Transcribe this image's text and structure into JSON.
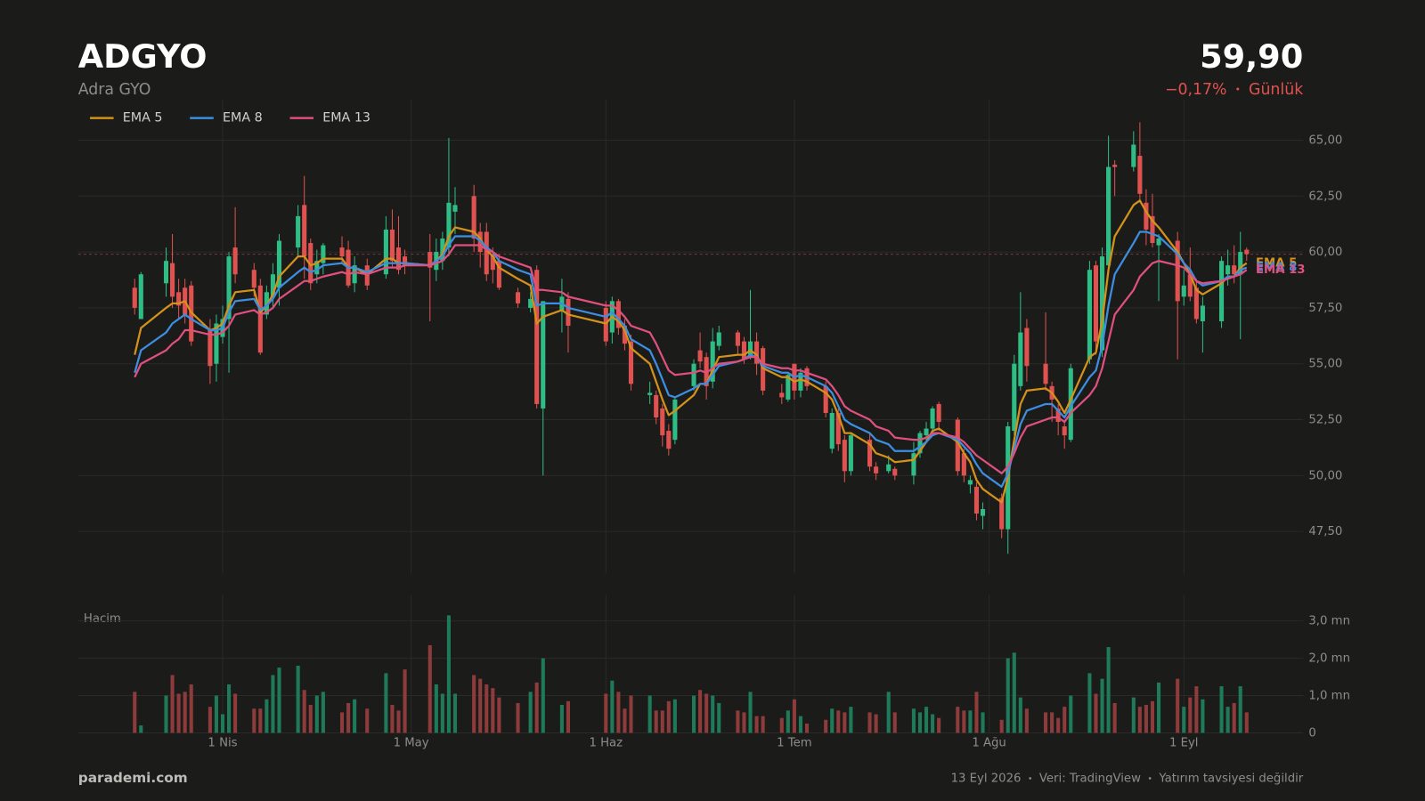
{
  "header": {
    "symbol": "ADGYO",
    "name": "Adra GYO",
    "price": "59,90",
    "change": "−0,17%",
    "period": "Günlük"
  },
  "footer": {
    "brand": "parademi.com",
    "date": "13 Eyl 2026",
    "source": "Veri: TradingView",
    "disclaimer": "Yatırım tavsiyesi değildir"
  },
  "chart_data": {
    "type": "candlestick",
    "up_color": "#2ebd85",
    "down_color": "#e0524f",
    "grid": true,
    "legend": "top-left",
    "x": [
      77,
      78,
      82,
      83,
      84,
      85,
      86,
      89,
      90,
      91,
      92,
      93,
      96,
      97,
      98,
      99,
      100,
      103,
      104,
      105,
      106,
      107,
      110,
      111,
      112,
      114,
      117,
      118,
      119,
      120,
      124,
      125,
      126,
      127,
      128,
      131,
      132,
      133,
      134,
      135,
      138,
      140,
      141,
      142,
      145,
      146,
      152,
      153,
      154,
      155,
      156,
      159,
      160,
      161,
      162,
      163,
      166,
      167,
      168,
      169,
      170,
      173,
      174,
      175,
      176,
      177,
      180,
      181,
      182,
      183,
      184,
      187,
      188,
      189,
      190,
      191,
      194,
      195,
      197,
      198,
      201,
      202,
      203,
      204,
      205,
      208,
      209,
      210,
      211,
      212,
      215,
      216,
      217,
      218,
      219,
      222,
      223,
      224,
      225,
      226,
      229,
      230,
      231,
      232,
      233,
      236,
      237,
      238,
      239,
      240,
      243,
      244,
      245,
      246,
      247,
      250,
      251,
      252,
      253,
      254
    ],
    "open": [
      58.4,
      57.0,
      58.6,
      59.5,
      58.2,
      58.4,
      58.5,
      56.5,
      55.0,
      56.2,
      57.0,
      60.2,
      59.2,
      58.5,
      57.2,
      58.0,
      58.4,
      60.2,
      62.1,
      60.4,
      59.0,
      59.5,
      60.2,
      60.1,
      58.6,
      59.4,
      59.0,
      61.0,
      60.2,
      59.8,
      60.0,
      59.2,
      59.6,
      60.2,
      61.8,
      62.5,
      60.9,
      60.9,
      59.9,
      59.6,
      58.2,
      57.5,
      59.2,
      53.0,
      57.4,
      57.9,
      57.5,
      56.4,
      57.8,
      56.7,
      56.0,
      53.6,
      53.6,
      53.0,
      52.0,
      51.6,
      54.0,
      55.6,
      55.3,
      54.2,
      55.8,
      56.4,
      56.0,
      55.4,
      56.0,
      55.7,
      53.7,
      53.4,
      55.0,
      53.8,
      54.8,
      54.0,
      51.2,
      52.8,
      51.6,
      50.2,
      51.6,
      50.4,
      50.2,
      50.3,
      50.0,
      51.0,
      51.8,
      52.1,
      53.2,
      52.5,
      51.0,
      49.6,
      49.5,
      48.2,
      49.0,
      47.6,
      52.0,
      54.0,
      56.6,
      55.0,
      54.0,
      53.0,
      52.2,
      51.6,
      55.2,
      59.4,
      55.6,
      59.4,
      63.9,
      63.8,
      64.3,
      62.2,
      61.6,
      60.3,
      60.5,
      58.0,
      59.0,
      58.4,
      56.9,
      56.9,
      59.0,
      59.4,
      59.0,
      60.1
    ],
    "high": [
      58.8,
      59.1,
      60.2,
      60.8,
      58.8,
      58.8,
      58.7,
      57.0,
      57.2,
      57.6,
      60.0,
      62.0,
      59.5,
      58.8,
      58.5,
      59.5,
      60.8,
      62.1,
      63.4,
      60.6,
      60.1,
      60.4,
      60.7,
      60.5,
      59.8,
      59.7,
      61.6,
      61.9,
      61.6,
      60.1,
      60.8,
      60.6,
      60.9,
      65.1,
      62.9,
      63.0,
      61.3,
      61.3,
      60.2,
      59.9,
      58.4,
      58.2,
      59.4,
      57.8,
      58.8,
      58.2,
      57.8,
      58.0,
      57.9,
      57.0,
      56.3,
      54.2,
      53.8,
      53.2,
      52.3,
      53.5,
      55.2,
      56.4,
      55.5,
      56.6,
      56.7,
      56.5,
      56.2,
      58.3,
      56.4,
      55.8,
      54.1,
      54.6,
      55.0,
      54.8,
      54.9,
      54.2,
      53.0,
      53.0,
      51.8,
      51.9,
      51.9,
      50.6,
      50.9,
      50.4,
      51.5,
      52.0,
      52.4,
      53.1,
      53.3,
      52.6,
      51.2,
      50.0,
      49.7,
      48.8,
      49.2,
      52.4,
      55.4,
      58.2,
      57.0,
      57.3,
      54.2,
      53.2,
      52.4,
      55.0,
      59.6,
      59.6,
      60.2,
      65.2,
      64.1,
      65.4,
      65.8,
      62.8,
      62.6,
      60.8,
      60.9,
      59.2,
      60.2,
      58.8,
      58.0,
      59.8,
      60.1,
      60.3,
      60.9,
      60.2
    ],
    "low": [
      57.2,
      57.0,
      58.0,
      57.5,
      57.0,
      56.8,
      55.8,
      54.1,
      54.2,
      55.9,
      54.6,
      58.6,
      58.0,
      55.4,
      57.0,
      57.5,
      57.6,
      59.8,
      58.8,
      58.3,
      58.6,
      59.0,
      59.5,
      58.4,
      58.2,
      58.3,
      58.8,
      59.3,
      59.0,
      59.0,
      56.9,
      58.7,
      59.2,
      59.8,
      60.8,
      60.0,
      59.3,
      58.7,
      58.6,
      58.3,
      57.5,
      57.3,
      53.0,
      50.0,
      56.4,
      55.5,
      55.8,
      55.9,
      56.3,
      55.6,
      53.8,
      53.2,
      52.3,
      51.3,
      50.9,
      51.4,
      53.8,
      54.8,
      53.4,
      53.9,
      55.6,
      55.4,
      55.0,
      55.2,
      54.5,
      53.6,
      53.2,
      53.3,
      53.4,
      53.5,
      53.8,
      52.6,
      51.0,
      51.1,
      49.7,
      50.0,
      50.2,
      49.8,
      50.1,
      49.8,
      49.6,
      50.8,
      51.5,
      51.8,
      52.0,
      50.0,
      49.7,
      49.2,
      48.0,
      47.6,
      47.2,
      46.5,
      51.8,
      53.8,
      54.2,
      53.8,
      52.4,
      51.8,
      51.2,
      51.5,
      55.0,
      55.4,
      55.3,
      59.0,
      62.5,
      63.6,
      62.2,
      60.3,
      60.2,
      57.8,
      55.2,
      57.6,
      57.8,
      56.8,
      55.5,
      56.6,
      58.5,
      58.6,
      56.1,
      59.6
    ],
    "close": [
      57.5,
      59.0,
      59.6,
      58.0,
      57.6,
      57.2,
      56.0,
      54.9,
      56.8,
      57.0,
      59.8,
      59.0,
      58.4,
      55.5,
      58.2,
      59.0,
      60.5,
      61.6,
      59.8,
      58.6,
      59.6,
      60.3,
      59.8,
      58.5,
      59.4,
      58.5,
      61.0,
      59.6,
      59.2,
      59.4,
      59.3,
      60.0,
      60.6,
      62.2,
      62.1,
      60.6,
      60.0,
      59.0,
      59.2,
      58.4,
      57.7,
      57.9,
      53.2,
      57.8,
      58.0,
      56.7,
      56.0,
      57.8,
      56.6,
      55.9,
      54.1,
      53.7,
      52.6,
      51.8,
      51.2,
      53.4,
      55.0,
      55.1,
      54.0,
      56.0,
      56.4,
      55.8,
      55.2,
      56.0,
      55.0,
      53.8,
      53.5,
      54.5,
      53.8,
      54.6,
      54.0,
      52.8,
      52.8,
      51.4,
      50.2,
      51.8,
      50.4,
      50.1,
      50.5,
      50.0,
      51.0,
      51.9,
      52.1,
      53.0,
      52.4,
      50.2,
      50.0,
      49.8,
      48.3,
      48.5,
      47.6,
      52.2,
      55.0,
      56.4,
      54.9,
      54.1,
      53.4,
      52.4,
      51.8,
      54.8,
      59.2,
      56.0,
      59.8,
      63.8,
      63.8,
      64.8,
      62.6,
      61.0,
      60.4,
      60.6,
      57.8,
      58.5,
      58.0,
      57.0,
      57.6,
      59.6,
      59.4,
      59.0,
      60.0,
      59.9
    ],
    "series": [
      {
        "name": "EMA 5",
        "color": "#d4921a",
        "values": [
          55.4,
          56.6,
          57.5,
          57.7,
          57.7,
          57.8,
          57.3,
          56.5,
          56.6,
          56.8,
          57.6,
          58.2,
          58.3,
          57.3,
          57.6,
          58.1,
          58.9,
          59.8,
          59.8,
          59.4,
          59.5,
          59.7,
          59.7,
          59.3,
          59.3,
          59.0,
          59.7,
          59.7,
          59.5,
          59.5,
          59.4,
          59.6,
          59.9,
          60.7,
          61.1,
          60.9,
          60.6,
          60.1,
          59.8,
          59.3,
          58.8,
          58.5,
          56.8,
          57.1,
          57.4,
          57.2,
          56.8,
          57.1,
          56.9,
          56.5,
          55.7,
          55.0,
          54.2,
          53.4,
          52.7,
          52.9,
          53.6,
          54.1,
          54.1,
          54.7,
          55.3,
          55.4,
          55.4,
          55.6,
          55.4,
          54.8,
          54.4,
          54.4,
          54.2,
          54.3,
          54.2,
          53.7,
          53.4,
          52.7,
          51.9,
          51.9,
          51.4,
          51.0,
          50.8,
          50.6,
          50.7,
          51.1,
          51.5,
          52.0,
          52.1,
          51.5,
          51.0,
          50.6,
          49.8,
          49.4,
          48.8,
          49.9,
          51.6,
          53.2,
          53.8,
          53.9,
          53.7,
          53.3,
          52.8,
          53.4,
          55.3,
          55.5,
          56.9,
          59.2,
          60.7,
          62.1,
          62.3,
          61.8,
          61.4,
          61.1,
          60.0,
          59.5,
          59.0,
          58.3,
          58.1,
          58.6,
          58.9,
          58.9,
          59.3,
          59.5
        ]
      },
      {
        "name": "EMA 8",
        "color": "#3d8ee0",
        "values": [
          54.6,
          55.6,
          56.4,
          56.8,
          57.0,
          57.2,
          57.0,
          56.5,
          56.5,
          56.6,
          57.3,
          57.8,
          57.9,
          57.4,
          57.6,
          57.9,
          58.4,
          59.1,
          59.3,
          59.1,
          59.2,
          59.4,
          59.5,
          59.3,
          59.3,
          59.1,
          59.5,
          59.5,
          59.5,
          59.5,
          59.4,
          59.6,
          59.8,
          60.3,
          60.7,
          60.7,
          60.5,
          60.2,
          60.0,
          59.6,
          59.2,
          59.0,
          57.6,
          57.7,
          57.7,
          57.5,
          57.1,
          57.3,
          57.0,
          56.7,
          56.1,
          55.6,
          55.0,
          54.3,
          53.6,
          53.5,
          53.9,
          54.1,
          54.1,
          54.5,
          54.9,
          55.1,
          55.2,
          55.4,
          55.3,
          54.9,
          54.6,
          54.6,
          54.4,
          54.5,
          54.4,
          54.0,
          53.7,
          53.1,
          52.5,
          52.3,
          51.9,
          51.6,
          51.4,
          51.1,
          51.1,
          51.3,
          51.5,
          51.8,
          51.9,
          51.6,
          51.3,
          51.0,
          50.5,
          50.1,
          49.5,
          50.1,
          51.2,
          52.3,
          52.9,
          53.2,
          53.2,
          52.9,
          52.6,
          53.1,
          54.4,
          54.7,
          55.8,
          57.6,
          59.0,
          60.4,
          60.9,
          60.9,
          60.8,
          60.7,
          59.9,
          59.5,
          59.2,
          58.7,
          58.5,
          58.7,
          58.9,
          58.9,
          59.2,
          59.3
        ]
      },
      {
        "name": "EMA 13",
        "color": "#e0507f",
        "values": [
          54.4,
          55.0,
          55.6,
          55.9,
          56.1,
          56.5,
          56.5,
          56.3,
          56.3,
          56.4,
          56.7,
          57.2,
          57.4,
          57.2,
          57.3,
          57.5,
          57.9,
          58.5,
          58.7,
          58.7,
          58.8,
          58.9,
          59.1,
          59.0,
          59.1,
          59.0,
          59.3,
          59.3,
          59.3,
          59.4,
          59.4,
          59.5,
          59.6,
          59.9,
          60.3,
          60.3,
          60.3,
          60.1,
          60.0,
          59.8,
          59.5,
          59.3,
          58.3,
          58.3,
          58.2,
          58.0,
          57.6,
          57.6,
          57.4,
          57.1,
          56.7,
          56.4,
          55.9,
          55.3,
          54.7,
          54.5,
          54.6,
          54.7,
          54.6,
          54.8,
          55.0,
          55.1,
          55.2,
          55.3,
          55.3,
          55.0,
          54.8,
          54.8,
          54.7,
          54.7,
          54.6,
          54.3,
          54.0,
          53.6,
          53.1,
          52.9,
          52.5,
          52.2,
          52.0,
          51.7,
          51.6,
          51.6,
          51.7,
          51.9,
          51.9,
          51.7,
          51.5,
          51.2,
          50.9,
          50.7,
          50.1,
          50.4,
          51.0,
          51.7,
          52.2,
          52.5,
          52.6,
          52.6,
          52.4,
          52.8,
          53.6,
          54.0,
          54.8,
          56.0,
          57.2,
          58.3,
          58.9,
          59.2,
          59.5,
          59.6,
          59.4,
          59.3,
          59.0,
          58.7,
          58.6,
          58.7,
          58.8,
          58.9,
          59.0,
          59.2
        ]
      }
    ],
    "xlim": [
      68,
      263
    ],
    "xticks": [
      {
        "value": 91,
        "label": "1 Nis"
      },
      {
        "value": 121,
        "label": "1 May"
      },
      {
        "value": 152,
        "label": "1 Haz"
      },
      {
        "value": 182,
        "label": "1 Tem"
      },
      {
        "value": 213,
        "label": "1 Ağu"
      },
      {
        "value": 244,
        "label": "1 Eyl"
      }
    ],
    "ylim": [
      45.6,
      66.8
    ],
    "yticks": [
      {
        "value": 47.5,
        "label": "47,50"
      },
      {
        "value": 50,
        "label": "50,00"
      },
      {
        "value": 52.5,
        "label": "52,50"
      },
      {
        "value": 55,
        "label": "55,00"
      },
      {
        "value": 57.5,
        "label": "57,50"
      },
      {
        "value": 60,
        "label": "60,00"
      },
      {
        "value": 62.5,
        "label": "62,50"
      },
      {
        "value": 65,
        "label": "65,00"
      }
    ],
    "volume": {
      "label": "Hacim",
      "up_color": "#1f7a5a",
      "down_color": "#8e3b3b",
      "values": [
        1.1,
        0.2,
        1.0,
        1.55,
        1.05,
        1.1,
        1.3,
        0.7,
        1.0,
        0.5,
        1.3,
        1.05,
        0.65,
        0.65,
        0.9,
        1.55,
        1.75,
        1.8,
        1.15,
        0.75,
        1.0,
        1.1,
        0.55,
        0.8,
        0.9,
        0.65,
        1.6,
        0.75,
        0.6,
        1.7,
        2.35,
        1.3,
        1.05,
        3.15,
        1.05,
        1.55,
        1.45,
        1.3,
        1.2,
        0.95,
        0.8,
        1.1,
        1.35,
        2.0,
        0.75,
        0.85,
        1.05,
        1.4,
        1.1,
        0.65,
        1.0,
        1.0,
        0.6,
        0.6,
        0.85,
        0.9,
        1.0,
        1.15,
        1.05,
        1.0,
        0.8,
        0.6,
        0.55,
        1.1,
        0.45,
        0.45,
        0.4,
        0.6,
        0.9,
        0.45,
        0.25,
        0.35,
        0.65,
        0.6,
        0.55,
        0.7,
        0.55,
        0.5,
        1.1,
        0.55,
        0.65,
        0.55,
        0.7,
        0.5,
        0.4,
        0.7,
        0.6,
        0.6,
        1.1,
        0.55,
        0.35,
        2.0,
        2.15,
        0.95,
        0.65,
        0.55,
        0.55,
        0.4,
        0.7,
        1.0,
        1.6,
        1.05,
        1.45,
        2.3,
        0.8,
        0.95,
        0.7,
        0.75,
        0.85,
        1.35,
        1.45,
        0.7,
        0.95,
        1.25,
        0.9,
        1.25,
        0.7,
        0.8,
        1.25,
        0.55
      ],
      "ylim": [
        0,
        3.7
      ],
      "yticks": [
        0,
        {
          "value": 1,
          "label": "1,0 mn"
        },
        {
          "value": 2,
          "label": "2,0 mn"
        },
        {
          "value": 3,
          "label": "3,0 mn"
        }
      ]
    }
  }
}
